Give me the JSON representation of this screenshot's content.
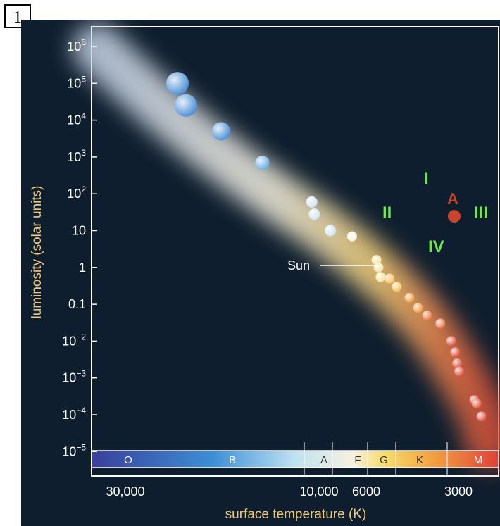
{
  "badge": "1",
  "chart_data": {
    "type": "scatter",
    "title": "",
    "xlabel": "surface temperature (K)",
    "ylabel": "luminosity (solar units)",
    "x_scale": "log, reversed",
    "y_scale": "log",
    "xlim": [
      50000,
      2300
    ],
    "ylim": [
      1e-05,
      1000000
    ],
    "x_ticks": [
      "30,000",
      "10,000",
      "6000",
      "3000"
    ],
    "y_ticks": [
      {
        "base": "10",
        "exp": "6"
      },
      {
        "base": "10",
        "exp": "5"
      },
      {
        "base": "10",
        "exp": "4"
      },
      {
        "base": "10",
        "exp": "3"
      },
      {
        "base": "10",
        "exp": "2"
      },
      {
        "base": "10",
        "exp": ""
      },
      {
        "base": "1",
        "exp": ""
      },
      {
        "base": "0.1",
        "exp": ""
      },
      {
        "base": "10",
        "exp": "−2"
      },
      {
        "base": "10",
        "exp": "−3"
      },
      {
        "base": "10",
        "exp": "−4"
      },
      {
        "base": "10",
        "exp": "−5"
      }
    ],
    "spectral_classes": [
      "O",
      "B",
      "A",
      "F",
      "G",
      "K",
      "M"
    ],
    "main_sequence_stars": [
      {
        "x": 30000,
        "y": 100000
      },
      {
        "x": 28000,
        "y": 25000
      },
      {
        "x": 21000,
        "y": 5000
      },
      {
        "x": 15000,
        "y": 700
      },
      {
        "x": 10000,
        "y": 60
      },
      {
        "x": 9800,
        "y": 28
      },
      {
        "x": 8600,
        "y": 10
      },
      {
        "x": 7200,
        "y": 7
      },
      {
        "x": 5900,
        "y": 1.6
      },
      {
        "x": 5800,
        "y": 1
      },
      {
        "x": 5700,
        "y": 0.55
      },
      {
        "x": 5300,
        "y": 0.5
      },
      {
        "x": 5000,
        "y": 0.3
      },
      {
        "x": 4500,
        "y": 0.15
      },
      {
        "x": 4200,
        "y": 0.08
      },
      {
        "x": 3900,
        "y": 0.05
      },
      {
        "x": 3500,
        "y": 0.03
      },
      {
        "x": 3200,
        "y": 0.01
      },
      {
        "x": 3100,
        "y": 0.005
      },
      {
        "x": 3050,
        "y": 0.0025
      },
      {
        "x": 3000,
        "y": 0.0015
      },
      {
        "x": 2650,
        "y": 0.00025
      },
      {
        "x": 2600,
        "y": 0.0002
      },
      {
        "x": 2500,
        "y": 9e-05
      }
    ],
    "sun_label": "Sun",
    "sun": {
      "x": 5800,
      "y": 1
    },
    "point_A": {
      "label": "A",
      "x": 3000,
      "y": 25
    },
    "region_labels": [
      {
        "label": "I",
        "x": 3900,
        "y": 120
      },
      {
        "label": "II",
        "x": 5800,
        "y": 25
      },
      {
        "label": "III",
        "x": 2550,
        "y": 25
      },
      {
        "label": "IV",
        "x": 3800,
        "y": 3.5
      }
    ],
    "colors": {
      "background": "#0f1e2e",
      "axis_label": "#f2c97a",
      "region_text": "#6ee84a",
      "point_A": "#c9442c"
    }
  }
}
